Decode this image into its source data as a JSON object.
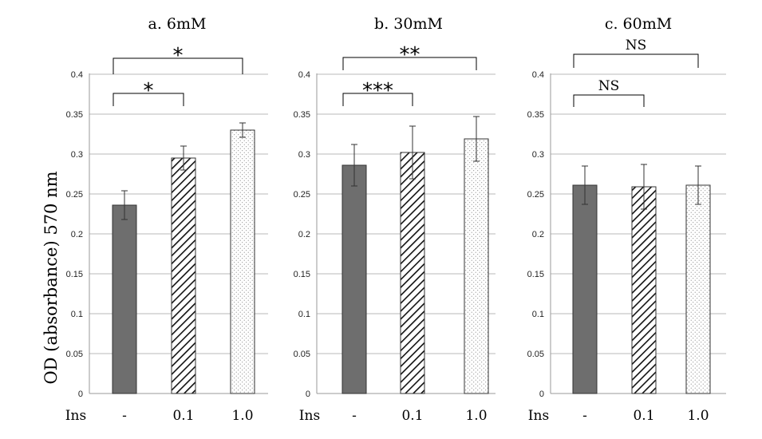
{
  "chart_data": {
    "type": "bar",
    "ylabel": "OD (absorbance)  570 nm",
    "x_prefix_label": "Ins",
    "ylim": [
      0,
      0.4
    ],
    "yticks": [
      "0",
      "0.05",
      "0.1",
      "0.15",
      "0.2",
      "0.25",
      "0.3",
      "0.35",
      "0.4"
    ],
    "grid": true,
    "legend": "none",
    "panels": [
      {
        "title": "a. 6mM",
        "categories": [
          "-",
          "0.1",
          "1.0"
        ],
        "values": [
          0.236,
          0.295,
          0.33
        ],
        "errors": [
          0.018,
          0.015,
          0.009
        ],
        "significance": [
          {
            "from": 0,
            "to": 1,
            "label": "*"
          },
          {
            "from": 0,
            "to": 2,
            "label": "*"
          }
        ]
      },
      {
        "title": "b. 30mM",
        "categories": [
          "-",
          "0.1",
          "1.0"
        ],
        "values": [
          0.286,
          0.302,
          0.319
        ],
        "errors": [
          0.026,
          0.033,
          0.028
        ],
        "significance": [
          {
            "from": 0,
            "to": 1,
            "label": "***"
          },
          {
            "from": 0,
            "to": 2,
            "label": "**"
          }
        ]
      },
      {
        "title": "c. 60mM",
        "categories": [
          "-",
          "0.1",
          "1.0"
        ],
        "values": [
          0.261,
          0.259,
          0.261
        ],
        "errors": [
          0.024,
          0.028,
          0.024
        ],
        "significance": [
          {
            "from": 0,
            "to": 1,
            "label": "NS"
          },
          {
            "from": 0,
            "to": 2,
            "label": "NS"
          }
        ]
      }
    ],
    "bar_styles": [
      {
        "fill": "#6e6e6e",
        "pattern": "solid"
      },
      {
        "fill": "#ffffff",
        "pattern": "diagonal-hatch"
      },
      {
        "fill": "#ffffff",
        "pattern": "dots"
      }
    ],
    "colors": {
      "grid": "#b8b8b8",
      "axis": "#999999",
      "bar_edge": "#333333",
      "solid_bar": "#6e6e6e",
      "error_bar": "#333333",
      "bracket": "#000000"
    }
  }
}
